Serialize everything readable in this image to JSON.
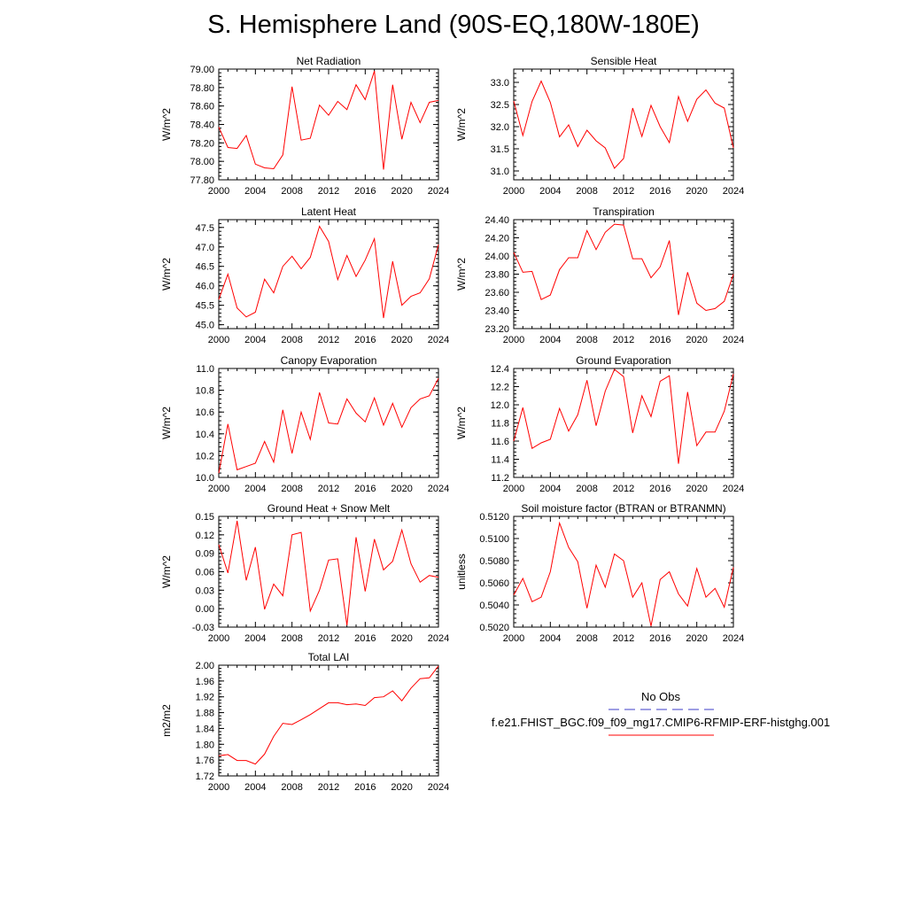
{
  "page": {
    "title": "S. Hemisphere Land (90S-EQ,180W-180E)"
  },
  "colors": {
    "model": "#ff0000",
    "obs": "#3c3cc8",
    "axis": "#000000"
  },
  "legend": {
    "obs_label": "No Obs",
    "model_label": "f.e21.FHIST_BGC.f09_f09_mg17.CMIP6-RFMIP-ERF-histghg.001"
  },
  "chart_data": [
    {
      "type": "line",
      "title": "Net Radiation",
      "ylabel": "W/m^2",
      "xlim": [
        2000,
        2024
      ],
      "ylim": [
        77.8,
        79.0
      ],
      "yticks": [
        "77.80",
        "78.00",
        "78.20",
        "78.40",
        "78.60",
        "78.80",
        "79.00"
      ],
      "xticks": [
        "2000",
        "2004",
        "2008",
        "2012",
        "2016",
        "2020",
        "2024"
      ],
      "x": [
        2000,
        2001,
        2002,
        2003,
        2004,
        2005,
        2006,
        2007,
        2008,
        2009,
        2010,
        2011,
        2012,
        2013,
        2014,
        2015,
        2016,
        2017,
        2018,
        2019,
        2020,
        2021,
        2022,
        2023,
        2024
      ],
      "series": [
        {
          "values": [
            78.37,
            78.15,
            78.14,
            78.28,
            77.97,
            77.93,
            77.92,
            78.07,
            78.81,
            78.23,
            78.25,
            78.61,
            78.5,
            78.65,
            78.56,
            78.83,
            78.67,
            78.98,
            77.91,
            78.83,
            78.24,
            78.64,
            78.42,
            78.64,
            78.66
          ]
        }
      ]
    },
    {
      "type": "line",
      "title": "Sensible Heat",
      "ylabel": "W/m^2",
      "xlim": [
        2000,
        2024
      ],
      "ylim": [
        30.8,
        33.3
      ],
      "yticks": [
        "31.0",
        "31.5",
        "32.0",
        "32.5",
        "33.0"
      ],
      "xticks": [
        "2000",
        "2004",
        "2008",
        "2012",
        "2016",
        "2020",
        "2024"
      ],
      "x": [
        2000,
        2001,
        2002,
        2003,
        2004,
        2005,
        2006,
        2007,
        2008,
        2009,
        2010,
        2011,
        2012,
        2013,
        2014,
        2015,
        2016,
        2017,
        2018,
        2019,
        2020,
        2021,
        2022,
        2023,
        2024
      ],
      "series": [
        {
          "values": [
            32.58,
            31.8,
            32.57,
            33.03,
            32.55,
            31.77,
            32.04,
            31.55,
            31.92,
            31.68,
            31.52,
            31.06,
            31.28,
            32.42,
            31.78,
            32.48,
            32.0,
            31.64,
            32.68,
            32.12,
            32.62,
            32.83,
            32.53,
            32.42,
            31.52
          ]
        }
      ]
    },
    {
      "type": "line",
      "title": "Latent Heat",
      "ylabel": "W/m^2",
      "xlim": [
        2000,
        2024
      ],
      "ylim": [
        44.9,
        47.7
      ],
      "yticks": [
        "45.0",
        "45.5",
        "46.0",
        "46.5",
        "47.0",
        "47.5"
      ],
      "xticks": [
        "2000",
        "2004",
        "2008",
        "2012",
        "2016",
        "2020",
        "2024"
      ],
      "x": [
        2000,
        2001,
        2002,
        2003,
        2004,
        2005,
        2006,
        2007,
        2008,
        2009,
        2010,
        2011,
        2012,
        2013,
        2014,
        2015,
        2016,
        2017,
        2018,
        2019,
        2020,
        2021,
        2022,
        2023,
        2024
      ],
      "series": [
        {
          "values": [
            45.65,
            46.3,
            45.43,
            45.2,
            45.32,
            46.17,
            45.82,
            46.5,
            46.76,
            46.44,
            46.73,
            47.53,
            47.14,
            46.16,
            46.78,
            46.24,
            46.66,
            47.21,
            45.17,
            46.63,
            45.5,
            45.73,
            45.82,
            46.18,
            47.06
          ]
        }
      ]
    },
    {
      "type": "line",
      "title": "Transpiration",
      "ylabel": "W/m^2",
      "xlim": [
        2000,
        2024
      ],
      "ylim": [
        23.2,
        24.4
      ],
      "yticks": [
        "23.20",
        "23.40",
        "23.60",
        "23.80",
        "24.00",
        "24.20",
        "24.40"
      ],
      "xticks": [
        "2000",
        "2004",
        "2008",
        "2012",
        "2016",
        "2020",
        "2024"
      ],
      "x": [
        2000,
        2001,
        2002,
        2003,
        2004,
        2005,
        2006,
        2007,
        2008,
        2009,
        2010,
        2011,
        2012,
        2013,
        2014,
        2015,
        2016,
        2017,
        2018,
        2019,
        2020,
        2021,
        2022,
        2023,
        2024
      ],
      "series": [
        {
          "values": [
            24.04,
            23.82,
            23.83,
            23.52,
            23.57,
            23.85,
            23.98,
            23.98,
            24.28,
            24.07,
            24.26,
            24.35,
            24.34,
            23.97,
            23.97,
            23.76,
            23.88,
            24.17,
            23.35,
            23.82,
            23.48,
            23.4,
            23.42,
            23.5,
            23.8
          ]
        }
      ]
    },
    {
      "type": "line",
      "title": "Canopy Evaporation",
      "ylabel": "W/m^2",
      "xlim": [
        2000,
        2024
      ],
      "ylim": [
        10.0,
        11.0
      ],
      "yticks": [
        "10.0",
        "10.2",
        "10.4",
        "10.6",
        "10.8",
        "11.0"
      ],
      "xticks": [
        "2000",
        "2004",
        "2008",
        "2012",
        "2016",
        "2020",
        "2024"
      ],
      "x": [
        2000,
        2001,
        2002,
        2003,
        2004,
        2005,
        2006,
        2007,
        2008,
        2009,
        2010,
        2011,
        2012,
        2013,
        2014,
        2015,
        2016,
        2017,
        2018,
        2019,
        2020,
        2021,
        2022,
        2023,
        2024
      ],
      "series": [
        {
          "values": [
            10.04,
            10.49,
            10.07,
            10.1,
            10.13,
            10.33,
            10.14,
            10.62,
            10.22,
            10.6,
            10.35,
            10.78,
            10.5,
            10.49,
            10.72,
            10.59,
            10.51,
            10.73,
            10.48,
            10.68,
            10.46,
            10.64,
            10.72,
            10.75,
            10.91
          ]
        }
      ]
    },
    {
      "type": "line",
      "title": "Ground Evaporation",
      "ylabel": "W/m^2",
      "xlim": [
        2000,
        2024
      ],
      "ylim": [
        11.2,
        12.4
      ],
      "yticks": [
        "11.2",
        "11.4",
        "11.6",
        "11.8",
        "12.0",
        "12.2",
        "12.4"
      ],
      "xticks": [
        "2000",
        "2004",
        "2008",
        "2012",
        "2016",
        "2020",
        "2024"
      ],
      "x": [
        2000,
        2001,
        2002,
        2003,
        2004,
        2005,
        2006,
        2007,
        2008,
        2009,
        2010,
        2011,
        2012,
        2013,
        2014,
        2015,
        2016,
        2017,
        2018,
        2019,
        2020,
        2021,
        2022,
        2023,
        2024
      ],
      "series": [
        {
          "values": [
            11.6,
            11.97,
            11.52,
            11.58,
            11.62,
            11.96,
            11.71,
            11.89,
            12.27,
            11.77,
            12.15,
            12.39,
            12.31,
            11.69,
            12.1,
            11.87,
            12.26,
            12.32,
            11.35,
            12.14,
            11.55,
            11.7,
            11.7,
            11.93,
            12.34
          ]
        }
      ]
    },
    {
      "type": "line",
      "title": "Ground Heat + Snow Melt",
      "ylabel": "W/m^2",
      "xlim": [
        2000,
        2024
      ],
      "ylim": [
        -0.03,
        0.15
      ],
      "yticks": [
        "-0.03",
        "0.00",
        "0.03",
        "0.06",
        "0.09",
        "0.12",
        "0.15"
      ],
      "xticks": [
        "2000",
        "2004",
        "2008",
        "2012",
        "2016",
        "2020",
        "2024"
      ],
      "x": [
        2000,
        2001,
        2002,
        2003,
        2004,
        2005,
        2006,
        2007,
        2008,
        2009,
        2010,
        2011,
        2012,
        2013,
        2014,
        2015,
        2016,
        2017,
        2018,
        2019,
        2020,
        2021,
        2022,
        2023,
        2024
      ],
      "series": [
        {
          "values": [
            0.104,
            0.058,
            0.143,
            0.046,
            0.1,
            -0.001,
            0.04,
            0.021,
            0.12,
            0.124,
            -0.004,
            0.03,
            0.079,
            0.081,
            -0.027,
            0.116,
            0.028,
            0.113,
            0.063,
            0.077,
            0.128,
            0.073,
            0.043,
            0.054,
            0.051
          ]
        }
      ]
    },
    {
      "type": "line",
      "title": "Soil moisture factor (BTRAN or BTRANMN)",
      "ylabel": "unitless",
      "xlim": [
        2000,
        2024
      ],
      "ylim": [
        0.502,
        0.512
      ],
      "yticks": [
        "0.5020",
        "0.5040",
        "0.5060",
        "0.5080",
        "0.5100",
        "0.5120"
      ],
      "xticks": [
        "2000",
        "2004",
        "2008",
        "2012",
        "2016",
        "2020",
        "2024"
      ],
      "x": [
        2000,
        2001,
        2002,
        2003,
        2004,
        2005,
        2006,
        2007,
        2008,
        2009,
        2010,
        2011,
        2012,
        2013,
        2014,
        2015,
        2016,
        2017,
        2018,
        2019,
        2020,
        2021,
        2022,
        2023,
        2024
      ],
      "series": [
        {
          "values": [
            0.5049,
            0.5064,
            0.5043,
            0.5047,
            0.507,
            0.5114,
            0.5092,
            0.5079,
            0.5037,
            0.5076,
            0.5056,
            0.5086,
            0.508,
            0.5047,
            0.506,
            0.5021,
            0.5063,
            0.507,
            0.505,
            0.5039,
            0.5073,
            0.5047,
            0.5055,
            0.5038,
            0.5074
          ]
        }
      ]
    },
    {
      "type": "line",
      "title": "Total LAI",
      "ylabel": "m2/m2",
      "xlim": [
        2000,
        2024
      ],
      "ylim": [
        1.72,
        2.0
      ],
      "yticks": [
        "1.72",
        "1.76",
        "1.80",
        "1.84",
        "1.88",
        "1.92",
        "1.96",
        "2.00"
      ],
      "xticks": [
        "2000",
        "2004",
        "2008",
        "2012",
        "2016",
        "2020",
        "2024"
      ],
      "x": [
        2000,
        2001,
        2002,
        2003,
        2004,
        2005,
        2006,
        2007,
        2008,
        2009,
        2010,
        2011,
        2012,
        2013,
        2014,
        2015,
        2016,
        2017,
        2018,
        2019,
        2020,
        2021,
        2022,
        2023,
        2024
      ],
      "series": [
        {
          "values": [
            1.771,
            1.774,
            1.759,
            1.759,
            1.75,
            1.775,
            1.82,
            1.853,
            1.85,
            1.862,
            1.875,
            1.89,
            1.905,
            1.905,
            1.9,
            1.902,
            1.898,
            1.918,
            1.92,
            1.935,
            1.91,
            1.942,
            1.966,
            1.968,
            1.998
          ]
        }
      ]
    }
  ]
}
